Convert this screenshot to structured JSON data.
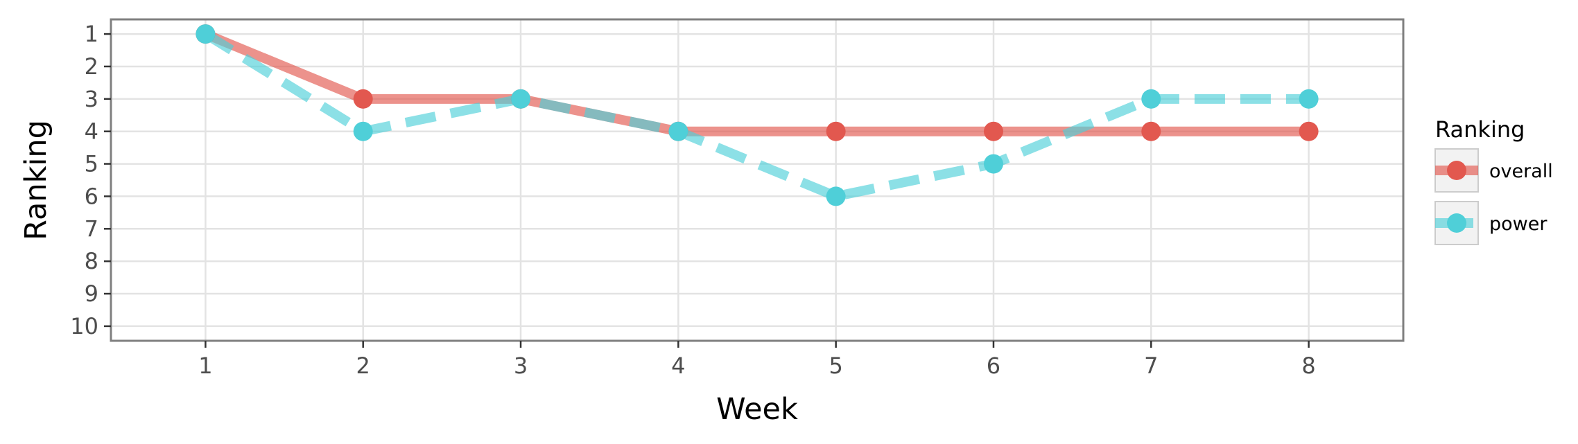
{
  "chart_data": {
    "type": "line",
    "title": "",
    "xlabel": "Week",
    "ylabel": "Ranking",
    "x": [
      1,
      2,
      3,
      4,
      5,
      6,
      7,
      8
    ],
    "x_ticks": [
      "1",
      "2",
      "3",
      "4",
      "5",
      "6",
      "7",
      "8"
    ],
    "y_ticks": [
      "1",
      "2",
      "3",
      "4",
      "5",
      "6",
      "7",
      "8",
      "9",
      "10"
    ],
    "xlim": [
      0.4,
      8.6
    ],
    "ylim": [
      10.45,
      0.55
    ],
    "y_reversed": true,
    "grid": true,
    "legend": {
      "title": "Ranking",
      "placement": "right"
    },
    "series": [
      {
        "name": "overall",
        "values": [
          1,
          3,
          3,
          4,
          4,
          4,
          4,
          4
        ],
        "color": "#e2584f",
        "line_style": "solid"
      },
      {
        "name": "power",
        "values": [
          1,
          4,
          3,
          4,
          6,
          5,
          3,
          3
        ],
        "color": "#4fcfd8",
        "line_style": "dashed"
      }
    ]
  }
}
